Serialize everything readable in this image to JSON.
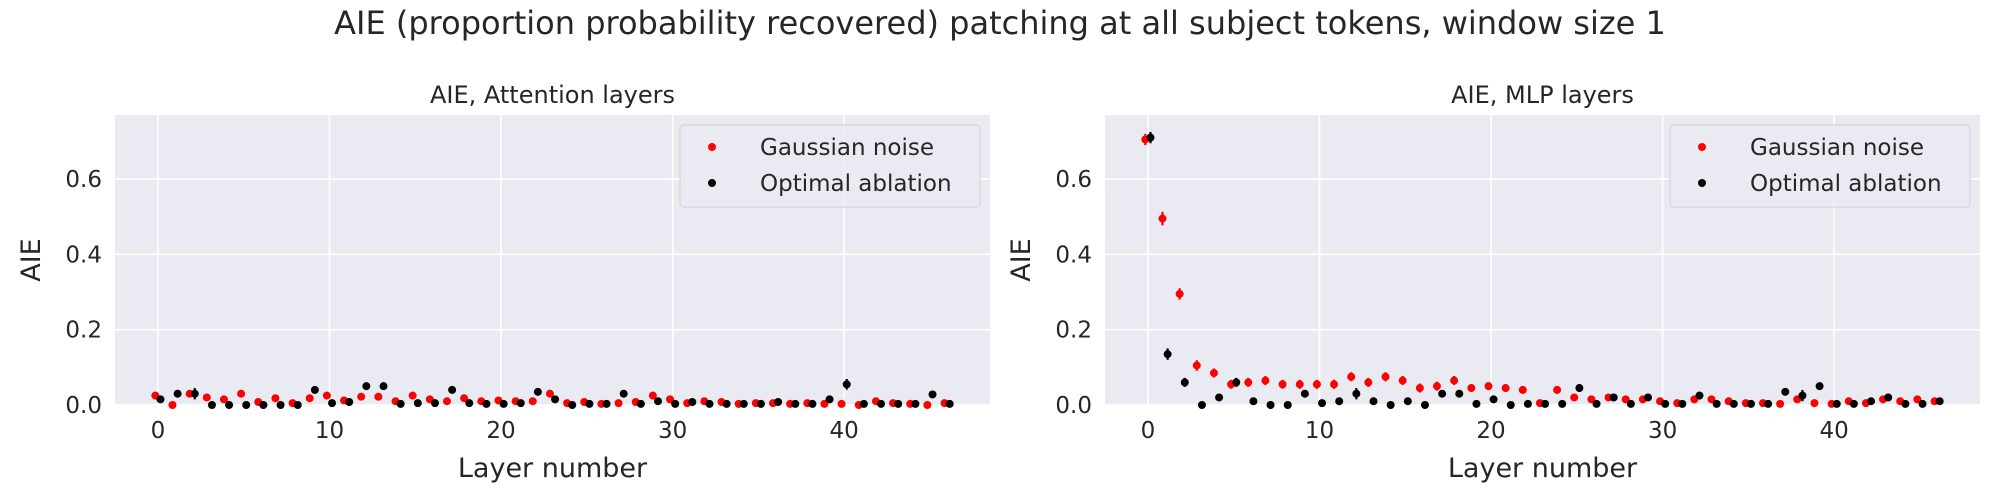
{
  "suptitle": "AIE (proportion probability recovered) patching at all subject tokens, window size 1",
  "colors": {
    "background": "#eaeaf2",
    "grid": "#ffffff",
    "gaussian": "#ff0000",
    "optimal": "#000000",
    "text": "#262626"
  },
  "chart_data": [
    {
      "type": "scatter",
      "title": "AIE, Attention layers",
      "xlabel": "Layer number",
      "ylabel": "AIE",
      "xlim": [
        -2.5,
        48.5
      ],
      "ylim": [
        0,
        0.77
      ],
      "xticks": [
        0,
        10,
        20,
        30,
        40
      ],
      "yticks": [
        0.0,
        0.2,
        0.4,
        0.6
      ],
      "ytick_labels": [
        "0.0",
        "0.2",
        "0.4",
        "0.6"
      ],
      "grid": true,
      "legend": "upper right",
      "series": [
        {
          "name": "Gaussian noise",
          "color": "#ff0000",
          "x": [
            -0.15,
            0.85,
            1.85,
            2.85,
            3.85,
            4.85,
            5.85,
            6.85,
            7.85,
            8.85,
            9.85,
            10.85,
            11.85,
            12.85,
            13.85,
            14.85,
            15.85,
            16.85,
            17.85,
            18.85,
            19.85,
            20.85,
            21.85,
            22.85,
            23.85,
            24.85,
            25.85,
            26.85,
            27.85,
            28.85,
            29.85,
            30.85,
            31.85,
            32.85,
            33.85,
            34.85,
            35.85,
            36.85,
            37.85,
            38.85,
            39.85,
            40.85,
            41.85,
            42.85,
            43.85,
            44.85,
            45.85
          ],
          "y": [
            0.025,
            0.0,
            0.03,
            0.02,
            0.015,
            0.03,
            0.008,
            0.018,
            0.005,
            0.018,
            0.025,
            0.012,
            0.022,
            0.022,
            0.01,
            0.025,
            0.015,
            0.01,
            0.018,
            0.01,
            0.012,
            0.01,
            0.01,
            0.03,
            0.005,
            0.008,
            0.003,
            0.005,
            0.008,
            0.025,
            0.015,
            0.005,
            0.01,
            0.008,
            0.003,
            0.005,
            0.005,
            0.003,
            0.005,
            0.003,
            0.003,
            0.0,
            0.01,
            0.005,
            0.003,
            0.0,
            0.005
          ],
          "err": [
            0.01,
            0.005,
            0.01,
            0.008,
            0.008,
            0.01,
            0.006,
            0.008,
            0.005,
            0.008,
            0.01,
            0.006,
            0.008,
            0.008,
            0.006,
            0.01,
            0.006,
            0.006,
            0.008,
            0.006,
            0.006,
            0.006,
            0.006,
            0.01,
            0.005,
            0.005,
            0.004,
            0.005,
            0.005,
            0.01,
            0.006,
            0.005,
            0.006,
            0.005,
            0.004,
            0.005,
            0.005,
            0.004,
            0.005,
            0.004,
            0.004,
            0.004,
            0.006,
            0.005,
            0.004,
            0.004,
            0.005
          ]
        },
        {
          "name": "Optimal ablation",
          "color": "#000000",
          "x": [
            0.15,
            1.15,
            2.15,
            3.15,
            4.15,
            5.15,
            6.15,
            7.15,
            8.15,
            9.15,
            10.15,
            11.15,
            12.15,
            13.15,
            14.15,
            15.15,
            16.15,
            17.15,
            18.15,
            19.15,
            20.15,
            21.15,
            22.15,
            23.15,
            24.15,
            25.15,
            26.15,
            27.15,
            28.15,
            29.15,
            30.15,
            31.15,
            32.15,
            33.15,
            34.15,
            35.15,
            36.15,
            37.15,
            38.15,
            39.15,
            40.15,
            41.15,
            42.15,
            43.15,
            44.15,
            45.15,
            46.15
          ],
          "y": [
            0.015,
            0.03,
            0.03,
            0.0,
            0.0,
            0.0,
            0.0,
            0.0,
            0.0,
            0.04,
            0.005,
            0.008,
            0.05,
            0.05,
            0.003,
            0.005,
            0.005,
            0.04,
            0.005,
            0.003,
            0.003,
            0.005,
            0.035,
            0.015,
            0.0,
            0.003,
            0.003,
            0.03,
            0.003,
            0.01,
            0.003,
            0.008,
            0.003,
            0.003,
            0.003,
            0.003,
            0.008,
            0.003,
            0.003,
            0.015,
            0.055,
            0.003,
            0.003,
            0.003,
            0.003,
            0.028,
            0.003
          ],
          "err": [
            0.006,
            0.008,
            0.015,
            0.004,
            0.004,
            0.004,
            0.004,
            0.004,
            0.004,
            0.01,
            0.005,
            0.006,
            0.01,
            0.01,
            0.004,
            0.005,
            0.005,
            0.008,
            0.005,
            0.004,
            0.004,
            0.005,
            0.01,
            0.008,
            0.004,
            0.004,
            0.004,
            0.008,
            0.004,
            0.006,
            0.004,
            0.006,
            0.004,
            0.004,
            0.004,
            0.004,
            0.006,
            0.004,
            0.004,
            0.008,
            0.014,
            0.004,
            0.004,
            0.004,
            0.004,
            0.008,
            0.004
          ]
        }
      ]
    },
    {
      "type": "scatter",
      "title": "AIE, MLP layers",
      "xlabel": "Layer number",
      "ylabel": "AIE",
      "xlim": [
        -2.5,
        48.5
      ],
      "ylim": [
        0,
        0.77
      ],
      "xticks": [
        0,
        10,
        20,
        30,
        40
      ],
      "yticks": [
        0.0,
        0.2,
        0.4,
        0.6
      ],
      "ytick_labels": [
        "0.0",
        "0.2",
        "0.4",
        "0.6"
      ],
      "grid": true,
      "legend": "upper right",
      "series": [
        {
          "name": "Gaussian noise",
          "color": "#ff0000",
          "x": [
            -0.15,
            0.85,
            1.85,
            2.85,
            3.85,
            4.85,
            5.85,
            6.85,
            7.85,
            8.85,
            9.85,
            10.85,
            11.85,
            12.85,
            13.85,
            14.85,
            15.85,
            16.85,
            17.85,
            18.85,
            19.85,
            20.85,
            21.85,
            22.85,
            23.85,
            24.85,
            25.85,
            26.85,
            27.85,
            28.85,
            29.85,
            30.85,
            31.85,
            32.85,
            33.85,
            34.85,
            35.85,
            36.85,
            37.85,
            38.85,
            39.85,
            40.85,
            41.85,
            42.85,
            43.85,
            44.85,
            45.85
          ],
          "y": [
            0.705,
            0.495,
            0.295,
            0.105,
            0.085,
            0.055,
            0.06,
            0.065,
            0.055,
            0.055,
            0.055,
            0.055,
            0.075,
            0.06,
            0.075,
            0.065,
            0.045,
            0.05,
            0.065,
            0.045,
            0.05,
            0.045,
            0.04,
            0.005,
            0.04,
            0.02,
            0.015,
            0.02,
            0.015,
            0.015,
            0.01,
            0.005,
            0.015,
            0.015,
            0.01,
            0.005,
            0.005,
            0.003,
            0.015,
            0.005,
            0.003,
            0.01,
            0.005,
            0.015,
            0.01,
            0.015,
            0.01
          ],
          "err": [
            0.015,
            0.018,
            0.015,
            0.014,
            0.012,
            0.012,
            0.012,
            0.012,
            0.012,
            0.012,
            0.012,
            0.012,
            0.012,
            0.012,
            0.012,
            0.012,
            0.012,
            0.012,
            0.012,
            0.01,
            0.01,
            0.01,
            0.01,
            0.005,
            0.01,
            0.008,
            0.008,
            0.008,
            0.008,
            0.008,
            0.006,
            0.005,
            0.008,
            0.008,
            0.006,
            0.005,
            0.005,
            0.004,
            0.008,
            0.005,
            0.004,
            0.006,
            0.005,
            0.008,
            0.006,
            0.008,
            0.006
          ]
        },
        {
          "name": "Optimal ablation",
          "color": "#000000",
          "x": [
            0.15,
            1.15,
            2.15,
            3.15,
            4.15,
            5.15,
            6.15,
            7.15,
            8.15,
            9.15,
            10.15,
            11.15,
            12.15,
            13.15,
            14.15,
            15.15,
            16.15,
            17.15,
            18.15,
            19.15,
            20.15,
            21.15,
            22.15,
            23.15,
            24.15,
            25.15,
            26.15,
            27.15,
            28.15,
            29.15,
            30.15,
            31.15,
            32.15,
            33.15,
            34.15,
            35.15,
            36.15,
            37.15,
            38.15,
            39.15,
            40.15,
            41.15,
            42.15,
            43.15,
            44.15,
            45.15,
            46.15
          ],
          "y": [
            0.71,
            0.135,
            0.06,
            0.0,
            0.02,
            0.06,
            0.01,
            0.0,
            0.0,
            0.03,
            0.005,
            0.01,
            0.03,
            0.01,
            0.0,
            0.01,
            0.0,
            0.03,
            0.03,
            0.003,
            0.015,
            0.0,
            0.003,
            0.003,
            0.003,
            0.045,
            0.003,
            0.02,
            0.003,
            0.02,
            0.003,
            0.003,
            0.025,
            0.003,
            0.003,
            0.003,
            0.003,
            0.035,
            0.025,
            0.05,
            0.003,
            0.003,
            0.01,
            0.02,
            0.003,
            0.003,
            0.01
          ],
          "err": [
            0.015,
            0.015,
            0.012,
            0.004,
            0.008,
            0.012,
            0.006,
            0.004,
            0.004,
            0.01,
            0.005,
            0.006,
            0.015,
            0.006,
            0.004,
            0.006,
            0.004,
            0.008,
            0.01,
            0.004,
            0.008,
            0.004,
            0.004,
            0.004,
            0.004,
            0.01,
            0.004,
            0.008,
            0.004,
            0.008,
            0.004,
            0.004,
            0.01,
            0.004,
            0.004,
            0.004,
            0.004,
            0.008,
            0.015,
            0.01,
            0.004,
            0.004,
            0.006,
            0.01,
            0.004,
            0.004,
            0.006
          ]
        }
      ]
    }
  ]
}
